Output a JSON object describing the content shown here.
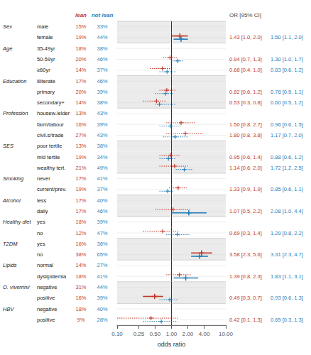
{
  "chart_data": {
    "type": "forest",
    "xlabel": "odds ratio",
    "log": "x",
    "grid": true,
    "xlim": [
      0.1,
      10
    ],
    "xticks": [
      {
        "value": 0.1,
        "label": "0.10"
      },
      {
        "value": 0.25,
        "label": "0.25"
      },
      {
        "value": 0.5,
        "label": "0.50"
      },
      {
        "value": 1,
        "label": "1.00"
      },
      {
        "value": 2,
        "label": "2.00"
      },
      {
        "value": 4,
        "label": "4.00"
      },
      {
        "value": 10,
        "label": "10.00"
      }
    ],
    "reference": 1,
    "ci_header": "OR [95% CI]",
    "categories": [
      "male",
      "female",
      "35-49yr",
      "50-59yr",
      "≥60yr",
      "illiterate",
      "primary",
      "secondary+",
      "housew./elder",
      "farm/labour",
      "civil.s/trade",
      "poor tertile",
      "mid tertile",
      "wealthy tert.",
      "never",
      "current/prev.",
      "less",
      "daily",
      "yes",
      "no",
      "yes",
      "no",
      "normal",
      "dyslipidemia",
      "negative",
      "positive",
      "negative",
      "positive"
    ],
    "groups": [
      "Sex",
      null,
      "Age",
      null,
      null,
      "Education",
      null,
      null,
      "Profession",
      null,
      null,
      "SES",
      null,
      null,
      "Smoking",
      null,
      "Alcohol",
      null,
      "Healthy diet",
      null,
      "T2DM",
      null,
      "Lipids",
      null,
      "O. viverrini/",
      null,
      "HBV",
      null
    ],
    "columns": [
      {
        "name": "lean",
        "color": "#c0392b",
        "values": [
          15,
          19,
          18,
          20,
          14,
          17,
          20,
          14,
          13,
          16,
          27,
          13,
          19,
          21,
          17,
          19,
          17,
          17,
          18,
          12,
          16,
          38,
          14,
          18,
          31,
          16,
          18,
          9
        ],
        "value_labels": [
          "15%",
          "19%",
          "18%",
          "20%",
          "14%",
          "17%",
          "20%",
          "14%",
          "13%",
          "16%",
          "27%",
          "13%",
          "19%",
          "21%",
          "17%",
          "19%",
          "17%",
          "17%",
          "18%",
          "12%",
          "16%",
          "38%",
          "14%",
          "18%",
          "31%",
          "16%",
          "18%",
          "9%"
        ]
      },
      {
        "name": "not lean",
        "color": "#2980b9",
        "values": [
          33,
          44,
          38,
          46,
          37,
          46,
          39,
          38,
          43,
          39,
          43,
          38,
          34,
          49,
          41,
          37,
          40,
          46,
          39,
          47,
          36,
          65,
          27,
          41,
          44,
          39,
          40,
          28
        ],
        "value_labels": [
          "33%",
          "44%",
          "38%",
          "46%",
          "37%",
          "46%",
          "39%",
          "38%",
          "43%",
          "39%",
          "43%",
          "38%",
          "34%",
          "49%",
          "41%",
          "37%",
          "40%",
          "46%",
          "39%",
          "47%",
          "36%",
          "65%",
          "27%",
          "41%",
          "44%",
          "39%",
          "40%",
          "28%"
        ]
      }
    ],
    "series": [
      {
        "name": "lean",
        "color": "#c0392b",
        "line_style": "dotted",
        "marker": "plus",
        "values": [
          null,
          1.43,
          null,
          0.94,
          0.68,
          null,
          0.82,
          0.53,
          null,
          1.5,
          1.8,
          null,
          0.95,
          1.14,
          null,
          1.33,
          null,
          1.07,
          null,
          0.69,
          null,
          3.58,
          null,
          1.39,
          null,
          0.49,
          null,
          0.42
        ],
        "ci_low": [
          null,
          1.0,
          null,
          0.7,
          0.4,
          null,
          0.6,
          0.3,
          null,
          0.8,
          0.8,
          null,
          0.6,
          0.6,
          null,
          0.9,
          null,
          0.5,
          null,
          0.3,
          null,
          2.3,
          null,
          0.8,
          null,
          0.3,
          null,
          0.1
        ],
        "ci_high": [
          null,
          2.0,
          null,
          1.3,
          1.0,
          null,
          1.2,
          0.8,
          null,
          2.7,
          3.8,
          null,
          1.4,
          2.0,
          null,
          1.9,
          null,
          2.2,
          null,
          1.4,
          null,
          5.6,
          null,
          2.3,
          null,
          0.7,
          null,
          1.3
        ],
        "value_labels": [
          null,
          "1.43 [1.0, 2.0]",
          null,
          "0.94 [0.7, 1.3]",
          "0.68 [0.4, 1.0]",
          null,
          "0.82 [0.6, 1.2]",
          "0.53 [0.3, 0.8]",
          null,
          "1.50 [0.8, 2.7]",
          "1.80 [0.8, 3.8]",
          null,
          "0.95 [0.6, 1.4]",
          "1.14 [0.6, 2.0]",
          null,
          "1.33 [0.9, 1.9]",
          null,
          "1.07 [0.5, 2.2]",
          null,
          "0.69 [0.3, 1.4]",
          null,
          "3.58 [2.3, 5.6]",
          null,
          "1.39 [0.8, 2.3]",
          null,
          "0.49 [0.3, 0.7]",
          null,
          "0.42 [0.1, 1.3]"
        ]
      },
      {
        "name": "lean",
        "color": "#c0392b",
        "line_style": "solid",
        "marker": "plus",
        "values": [
          null,
          1.43,
          null,
          null,
          null,
          null,
          null,
          null,
          null,
          null,
          null,
          null,
          null,
          null,
          null,
          null,
          null,
          null,
          null,
          null,
          null,
          3.58,
          null,
          null,
          null,
          0.49,
          null,
          null
        ],
        "ci_low": [
          null,
          1.0,
          null,
          null,
          null,
          null,
          null,
          null,
          null,
          null,
          null,
          null,
          null,
          null,
          null,
          null,
          null,
          null,
          null,
          null,
          null,
          2.3,
          null,
          null,
          null,
          0.3,
          null,
          null
        ],
        "ci_high": [
          null,
          2.0,
          null,
          null,
          null,
          null,
          null,
          null,
          null,
          null,
          null,
          null,
          null,
          null,
          null,
          null,
          null,
          null,
          null,
          null,
          null,
          5.6,
          null,
          null,
          null,
          0.7,
          null,
          null
        ]
      },
      {
        "name": "not lean",
        "color": "#2980b9",
        "line_style": "dotted",
        "marker": "plus",
        "values": [
          null,
          1.5,
          null,
          1.3,
          0.83,
          null,
          0.78,
          0.6,
          null,
          0.96,
          1.17,
          null,
          0.88,
          1.72,
          null,
          0.85,
          null,
          2.08,
          null,
          1.29,
          null,
          3.31,
          null,
          1.83,
          null,
          0.93,
          null,
          0.65
        ],
        "ci_low": [
          null,
          1.1,
          null,
          1.0,
          0.6,
          null,
          0.5,
          0.5,
          null,
          0.6,
          0.7,
          null,
          0.6,
          1.2,
          null,
          0.6,
          null,
          1.0,
          null,
          0.8,
          null,
          2.3,
          null,
          1.1,
          null,
          0.6,
          null,
          0.3
        ],
        "ci_high": [
          null,
          2.0,
          null,
          1.7,
          1.2,
          null,
          1.1,
          1.2,
          null,
          1.5,
          2.0,
          null,
          1.2,
          2.5,
          null,
          1.1,
          null,
          4.4,
          null,
          2.2,
          null,
          4.7,
          null,
          3.1,
          null,
          1.3,
          null,
          1.3
        ],
        "value_labels": [
          null,
          "1.50 [1.1, 2.0]",
          null,
          "1.30 [1.0, 1.7]",
          "0.83 [0.6, 1.2]",
          null,
          "0.78 [0.5, 1.1]",
          "0.60 [0.5, 1.2]",
          null,
          "0.96 [0.6, 1.5]",
          "1.17 [0.7, 2.0]",
          null,
          "0.88 [0.6, 1.2]",
          "1.72 [1.2, 2.5]",
          null,
          "0.85 [0.6, 1.1]",
          null,
          "2.08 [1.0, 4.4]",
          null,
          "1.29 [0.8, 2.2]",
          null,
          "3.31 [2.3, 4.7]",
          null,
          "1.83 [1.1, 3.1]",
          null,
          "0.93 [0.6, 1.3]",
          null,
          "0.65 [0.3, 1.3]"
        ]
      },
      {
        "name": "not lean",
        "color": "#2980b9",
        "line_style": "solid",
        "marker": "plus",
        "values": [
          null,
          1.5,
          null,
          null,
          null,
          null,
          null,
          null,
          null,
          null,
          null,
          null,
          null,
          null,
          null,
          null,
          null,
          2.08,
          null,
          null,
          null,
          3.31,
          null,
          1.83,
          null,
          null,
          null,
          null
        ],
        "ci_low": [
          null,
          1.1,
          null,
          null,
          null,
          null,
          null,
          null,
          null,
          null,
          null,
          null,
          null,
          null,
          null,
          null,
          null,
          1.0,
          null,
          null,
          null,
          2.3,
          null,
          1.1,
          null,
          null,
          null,
          null
        ],
        "ci_high": [
          null,
          2.0,
          null,
          null,
          null,
          null,
          null,
          null,
          null,
          null,
          null,
          null,
          null,
          null,
          null,
          null,
          null,
          4.4,
          null,
          null,
          null,
          4.7,
          null,
          3.1,
          null,
          null,
          null,
          null
        ]
      }
    ]
  }
}
